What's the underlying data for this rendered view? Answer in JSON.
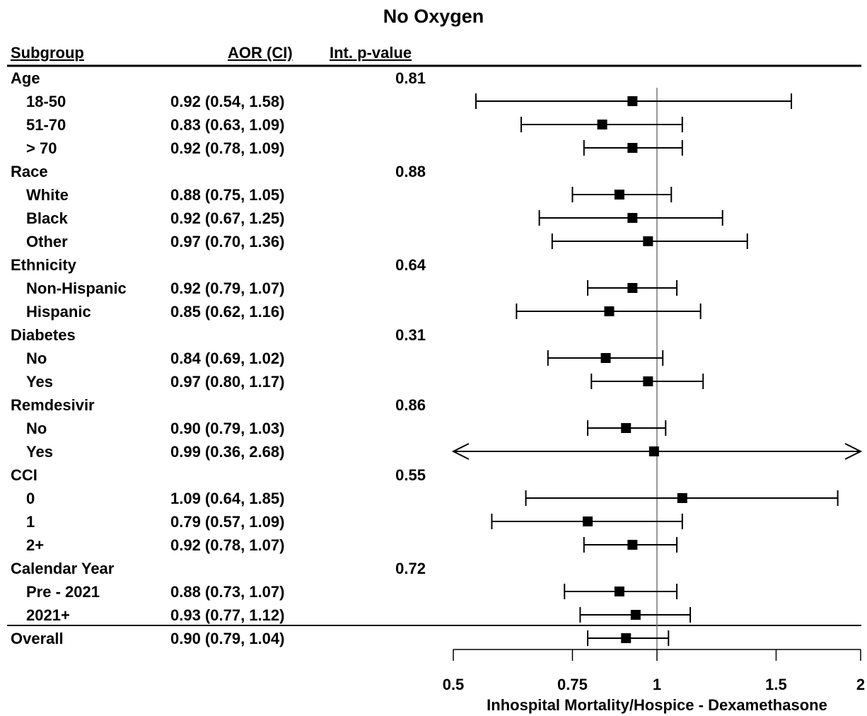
{
  "title": "No Oxygen",
  "headers": {
    "subgroup": "Subgroup",
    "aor": "AOR (CI)",
    "pvalue": "Int. p-value"
  },
  "chart_data": {
    "type": "forest",
    "title": "No Oxygen",
    "xlabel": "Inhospital Mortality/Hospice - Dexamethasone",
    "xscale": "log",
    "xlim": [
      0.5,
      2
    ],
    "xticks": [
      0.5,
      0.75,
      1,
      1.5,
      2
    ],
    "xtick_labels": [
      "0.5",
      "0.75",
      "1",
      "1.5",
      "2"
    ],
    "reference_line": 1,
    "rows": [
      {
        "label": "Age",
        "group": true,
        "pvalue": "0.81"
      },
      {
        "label": "18-50",
        "aor_text": "0.92 (0.54, 1.58)",
        "est": 0.92,
        "lo": 0.54,
        "hi": 1.58
      },
      {
        "label": "51-70",
        "aor_text": "0.83 (0.63, 1.09)",
        "est": 0.83,
        "lo": 0.63,
        "hi": 1.09
      },
      {
        "label": "> 70",
        "aor_text": "0.92 (0.78, 1.09)",
        "est": 0.92,
        "lo": 0.78,
        "hi": 1.09
      },
      {
        "label": "Race",
        "group": true,
        "pvalue": "0.88"
      },
      {
        "label": "White",
        "aor_text": "0.88 (0.75, 1.05)",
        "est": 0.88,
        "lo": 0.75,
        "hi": 1.05
      },
      {
        "label": "Black",
        "aor_text": "0.92 (0.67, 1.25)",
        "est": 0.92,
        "lo": 0.67,
        "hi": 1.25
      },
      {
        "label": "Other",
        "aor_text": "0.97 (0.70, 1.36)",
        "est": 0.97,
        "lo": 0.7,
        "hi": 1.36
      },
      {
        "label": "Ethnicity",
        "group": true,
        "pvalue": "0.64"
      },
      {
        "label": "Non-Hispanic",
        "aor_text": "0.92 (0.79, 1.07)",
        "est": 0.92,
        "lo": 0.79,
        "hi": 1.07
      },
      {
        "label": "Hispanic",
        "aor_text": "0.85 (0.62, 1.16)",
        "est": 0.85,
        "lo": 0.62,
        "hi": 1.16
      },
      {
        "label": "Diabetes",
        "group": true,
        "pvalue": "0.31"
      },
      {
        "label": "No",
        "aor_text": "0.84 (0.69, 1.02)",
        "est": 0.84,
        "lo": 0.69,
        "hi": 1.02
      },
      {
        "label": "Yes",
        "aor_text": "0.97 (0.80, 1.17)",
        "est": 0.97,
        "lo": 0.8,
        "hi": 1.17
      },
      {
        "label": "Remdesivir",
        "group": true,
        "pvalue": "0.86"
      },
      {
        "label": "No",
        "aor_text": "0.90 (0.79, 1.03)",
        "est": 0.9,
        "lo": 0.79,
        "hi": 1.03
      },
      {
        "label": "Yes",
        "aor_text": "0.99 (0.36, 2.68)",
        "est": 0.99,
        "lo": 0.36,
        "hi": 2.68
      },
      {
        "label": "CCI",
        "group": true,
        "pvalue": "0.55"
      },
      {
        "label": "0",
        "aor_text": "1.09 (0.64, 1.85)",
        "est": 1.09,
        "lo": 0.64,
        "hi": 1.85
      },
      {
        "label": "1",
        "aor_text": "0.79 (0.57, 1.09)",
        "est": 0.79,
        "lo": 0.57,
        "hi": 1.09
      },
      {
        "label": "2+",
        "aor_text": "0.92 (0.78, 1.07)",
        "est": 0.92,
        "lo": 0.78,
        "hi": 1.07
      },
      {
        "label": "Calendar Year",
        "group": true,
        "pvalue": "0.72"
      },
      {
        "label": "Pre - 2021",
        "aor_text": "0.88 (0.73, 1.07)",
        "est": 0.88,
        "lo": 0.73,
        "hi": 1.07
      },
      {
        "label": "2021+",
        "aor_text": "0.93 (0.77, 1.12)",
        "est": 0.93,
        "lo": 0.77,
        "hi": 1.12
      },
      {
        "label": "Overall",
        "group": true,
        "aor_text": "0.90 (0.79, 1.04)",
        "est": 0.9,
        "lo": 0.79,
        "hi": 1.04
      }
    ]
  }
}
